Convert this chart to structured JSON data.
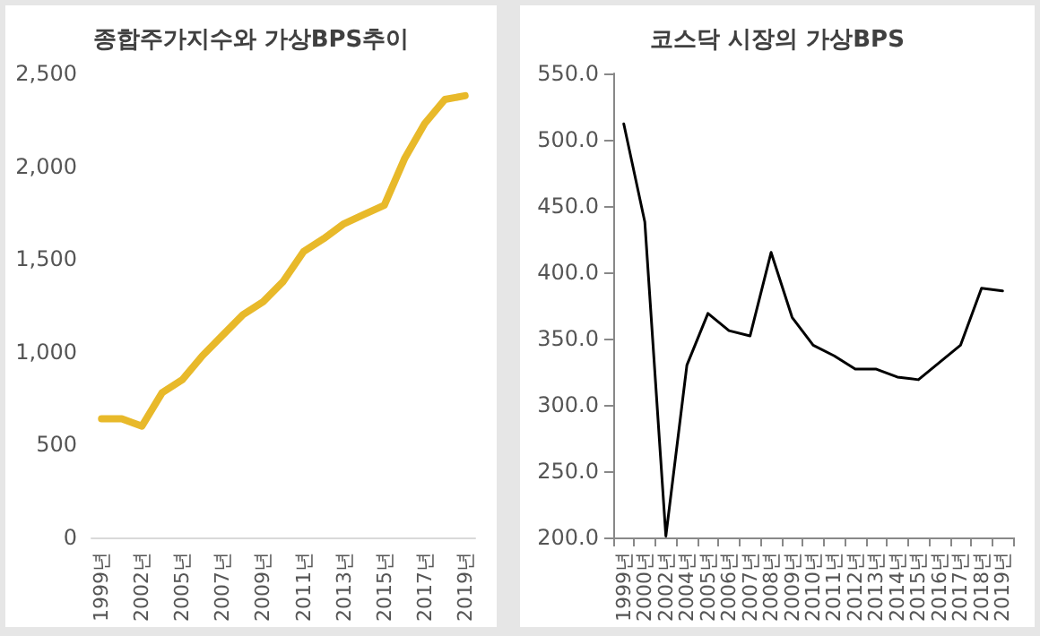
{
  "chart_data": [
    {
      "type": "line",
      "title": "종합주가지수와 가상BPS추이",
      "categories": [
        "1999년",
        null,
        "2002년",
        null,
        "2005년",
        null,
        "2007년",
        null,
        "2009년",
        null,
        "2011년",
        null,
        "2013년",
        null,
        "2015년",
        null,
        "2017년",
        null,
        "2019년"
      ],
      "series": [
        {
          "color": "#e8b92a",
          "values": [
            640,
            640,
            600,
            780,
            850,
            980,
            1090,
            1200,
            1270,
            1380,
            1540,
            1610,
            1690,
            1740,
            1790,
            2040,
            2230,
            2360,
            2380
          ]
        }
      ],
      "ylim": [
        0,
        2500
      ],
      "yticks": [
        0,
        500,
        {
          "value": 1000,
          "label": "1,000"
        },
        {
          "value": 1500,
          "label": "1,500"
        },
        {
          "value": 2000,
          "label": "2,000"
        },
        {
          "value": 2500,
          "label": "2,500"
        }
      ],
      "grid": false,
      "marker": "none",
      "line_style": "solid"
    },
    {
      "type": "line",
      "title": "코스닥 시장의 가상BPS",
      "categories": [
        "1999년",
        "2000년",
        "2002년",
        "2004년",
        "2005년",
        "2006년",
        "2007년",
        "2008년",
        "2009년",
        "2010년",
        "2011년",
        "2012년",
        "2013년",
        "2014년",
        "2015년",
        "2016년",
        "2017년",
        "2018년",
        "2019년"
      ],
      "series": [
        {
          "color": "#000000",
          "values": [
            512,
            438,
            201,
            330,
            369,
            356,
            352,
            415,
            366,
            345,
            337,
            327,
            327,
            321,
            319,
            332,
            345,
            388,
            386
          ]
        }
      ],
      "ylim": [
        200,
        550
      ],
      "yticks": [
        {
          "value": 200,
          "label": "200.0"
        },
        {
          "value": 250,
          "label": "250.0"
        },
        {
          "value": 300,
          "label": "300.0"
        },
        {
          "value": 350,
          "label": "350.0"
        },
        {
          "value": 400,
          "label": "400.0"
        },
        {
          "value": 450,
          "label": "450.0"
        },
        {
          "value": 500,
          "label": "500.0"
        },
        {
          "value": 550,
          "label": "550.0"
        }
      ],
      "grid": false,
      "marker": "none",
      "line_style": "solid"
    }
  ]
}
